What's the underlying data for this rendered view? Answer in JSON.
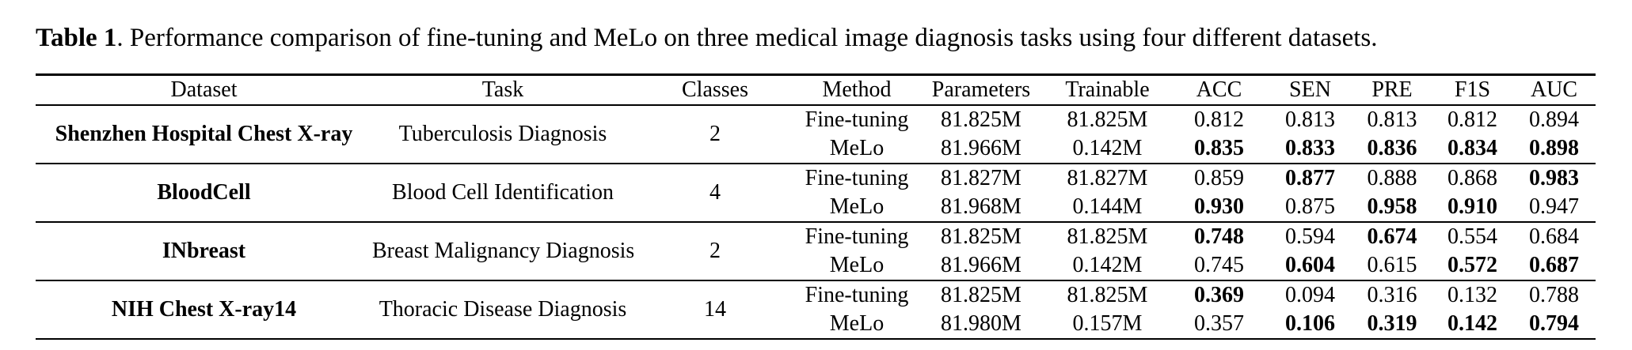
{
  "colors": {
    "text": "#000000",
    "background": "#ffffff",
    "rule": "#000000"
  },
  "caption": {
    "label": "Table 1",
    "text": ". Performance comparison of fine-tuning and MeLo on three medical image diagnosis tasks using four different datasets."
  },
  "table": {
    "headers": [
      "Dataset",
      "Task",
      "Classes",
      "Method",
      "Parameters",
      "Trainable",
      "ACC",
      "SEN",
      "PRE",
      "F1S",
      "AUC"
    ],
    "groups": [
      {
        "dataset": "Shenzhen Hospital Chest X-ray",
        "task": "Tuberculosis Diagnosis",
        "classes": "2",
        "rows": [
          {
            "method": "Fine-tuning",
            "parameters": "81.825M",
            "trainable": "81.825M",
            "metrics": [
              {
                "v": "0.812",
                "b": false
              },
              {
                "v": "0.813",
                "b": false
              },
              {
                "v": "0.813",
                "b": false
              },
              {
                "v": "0.812",
                "b": false
              },
              {
                "v": "0.894",
                "b": false
              }
            ]
          },
          {
            "method": "MeLo",
            "parameters": "81.966M",
            "trainable": "0.142M",
            "metrics": [
              {
                "v": "0.835",
                "b": true
              },
              {
                "v": "0.833",
                "b": true
              },
              {
                "v": "0.836",
                "b": true
              },
              {
                "v": "0.834",
                "b": true
              },
              {
                "v": "0.898",
                "b": true
              }
            ]
          }
        ]
      },
      {
        "dataset": "BloodCell",
        "task": "Blood Cell Identification",
        "classes": "4",
        "rows": [
          {
            "method": "Fine-tuning",
            "parameters": "81.827M",
            "trainable": "81.827M",
            "metrics": [
              {
                "v": "0.859",
                "b": false
              },
              {
                "v": "0.877",
                "b": true
              },
              {
                "v": "0.888",
                "b": false
              },
              {
                "v": "0.868",
                "b": false
              },
              {
                "v": "0.983",
                "b": true
              }
            ]
          },
          {
            "method": "MeLo",
            "parameters": "81.968M",
            "trainable": "0.144M",
            "metrics": [
              {
                "v": "0.930",
                "b": true
              },
              {
                "v": "0.875",
                "b": false
              },
              {
                "v": "0.958",
                "b": true
              },
              {
                "v": "0.910",
                "b": true
              },
              {
                "v": "0.947",
                "b": false
              }
            ]
          }
        ]
      },
      {
        "dataset": "INbreast",
        "task": "Breast Malignancy Diagnosis",
        "classes": "2",
        "rows": [
          {
            "method": "Fine-tuning",
            "parameters": "81.825M",
            "trainable": "81.825M",
            "metrics": [
              {
                "v": "0.748",
                "b": true
              },
              {
                "v": "0.594",
                "b": false
              },
              {
                "v": "0.674",
                "b": true
              },
              {
                "v": "0.554",
                "b": false
              },
              {
                "v": "0.684",
                "b": false
              }
            ]
          },
          {
            "method": "MeLo",
            "parameters": "81.966M",
            "trainable": "0.142M",
            "metrics": [
              {
                "v": "0.745",
                "b": false
              },
              {
                "v": "0.604",
                "b": true
              },
              {
                "v": "0.615",
                "b": false
              },
              {
                "v": "0.572",
                "b": true
              },
              {
                "v": "0.687",
                "b": true
              }
            ]
          }
        ]
      },
      {
        "dataset": "NIH Chest X-ray14",
        "task": "Thoracic Disease Diagnosis",
        "classes": "14",
        "rows": [
          {
            "method": "Fine-tuning",
            "parameters": "81.825M",
            "trainable": "81.825M",
            "metrics": [
              {
                "v": "0.369",
                "b": true
              },
              {
                "v": "0.094",
                "b": false
              },
              {
                "v": "0.316",
                "b": false
              },
              {
                "v": "0.132",
                "b": false
              },
              {
                "v": "0.788",
                "b": false
              }
            ]
          },
          {
            "method": "MeLo",
            "parameters": "81.980M",
            "trainable": "0.157M",
            "metrics": [
              {
                "v": "0.357",
                "b": false
              },
              {
                "v": "0.106",
                "b": true
              },
              {
                "v": "0.319",
                "b": true
              },
              {
                "v": "0.142",
                "b": true
              },
              {
                "v": "0.794",
                "b": true
              }
            ]
          }
        ]
      }
    ]
  }
}
